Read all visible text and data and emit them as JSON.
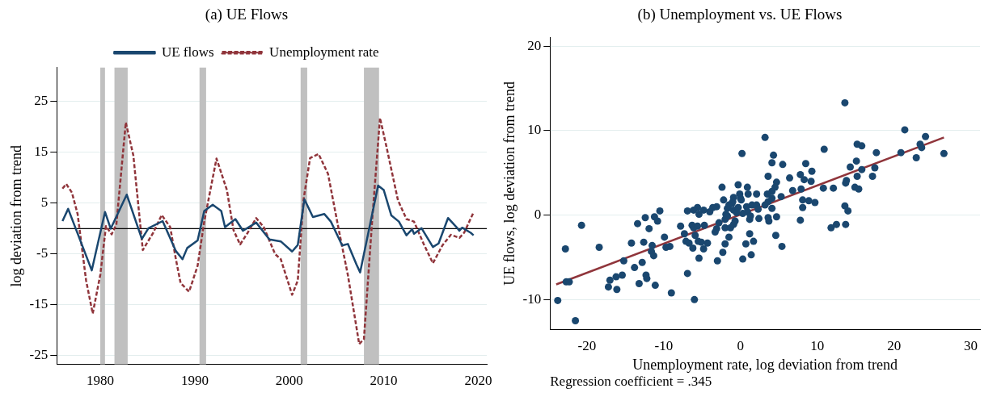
{
  "chart_data": [
    {
      "type": "line",
      "title": "(a) UE Flows",
      "ylabel": "log deviation from trend",
      "xlim": [
        1975.4,
        2020.9
      ],
      "xticks": [
        1980,
        1990,
        2000,
        2010,
        2020
      ],
      "ylim": [
        -26.7,
        31.7
      ],
      "yticks": [
        -25,
        -15,
        -5,
        5,
        15,
        25
      ],
      "grid": "y",
      "legend": "top",
      "marker": "none",
      "bands": [
        {
          "axis": "x",
          "from": 1980.0,
          "to": 1980.5,
          "color": "#c0c0c0"
        },
        {
          "axis": "x",
          "from": 1981.5,
          "to": 1982.9,
          "color": "#c0c0c0"
        },
        {
          "axis": "x",
          "from": 1990.5,
          "to": 1991.2,
          "color": "#c0c0c0"
        },
        {
          "axis": "x",
          "from": 2001.2,
          "to": 2001.9,
          "color": "#c0c0c0"
        },
        {
          "axis": "x",
          "from": 2007.9,
          "to": 2009.5,
          "color": "#c0c0c0"
        }
      ],
      "ref_lines": [
        {
          "axis": "y",
          "value": 0,
          "color": "#000000"
        }
      ],
      "series": [
        {
          "name": "UE flows",
          "color": "#1a476f",
          "line_style": "solid",
          "x": [
            1976.0,
            1976.6,
            1979.1,
            1980.5,
            1981.1,
            1982.8,
            1984.4,
            1985.1,
            1986.6,
            1988.0,
            1988.7,
            1989.2,
            1990.3,
            1991.0,
            1991.9,
            1992.8,
            1993.2,
            1994.3,
            1995.1,
            1996.5,
            1997.9,
            1999.1,
            2000.3,
            2000.9,
            2001.6,
            2002.5,
            2003.7,
            2004.4,
            2005.6,
            2006.2,
            2007.1,
            2007.5,
            2009.4,
            2010.0,
            2010.8,
            2011.6,
            2012.4,
            2013.0,
            2013.2,
            2014.0,
            2015.2,
            2015.8,
            2016.8,
            2017.7,
            2018.0,
            2018.3,
            2019.2,
            2019.5
          ],
          "values": [
            1.5,
            3.9,
            -8.2,
            3.3,
            0,
            6.7,
            -2.0,
            0.1,
            1.5,
            -4.4,
            -6.0,
            -3.8,
            -2.3,
            3.5,
            4.7,
            3.5,
            0.3,
            1.9,
            -0.4,
            1.2,
            -2.1,
            -2.5,
            -4.5,
            -3.2,
            5.8,
            2.3,
            2.9,
            1.4,
            -3.3,
            -3.0,
            -7.0,
            -8.6,
            8.5,
            7.6,
            2.6,
            1.4,
            -1.3,
            -0.1,
            -1.0,
            0.1,
            -3.6,
            -2.9,
            2.1,
            0.3,
            -0.4,
            0.2,
            -0.8,
            -1.3
          ]
        },
        {
          "name": "Unemployment rate",
          "color": "#90353b",
          "line_style": "dashed",
          "x": [
            1976.0,
            1976.4,
            1977.0,
            1977.6,
            1978.5,
            1979.2,
            1980.0,
            1980.6,
            1981.2,
            1981.7,
            1982.7,
            1983.5,
            1984.5,
            1985.6,
            1986.5,
            1987.4,
            1988.0,
            1988.5,
            1989.4,
            1990.3,
            1991.0,
            1992.3,
            1993.4,
            1994.1,
            1994.8,
            1995.6,
            1996.5,
            1997.3,
            1998.5,
            1999.1,
            2000.3,
            2000.9,
            2001.5,
            2002.2,
            2003.1,
            2004.1,
            2005.3,
            2006.2,
            2007.4,
            2007.9,
            2008.8,
            2009.6,
            2010.3,
            2011.5,
            2012.4,
            2013.2,
            2014.2,
            2015.2,
            2016.2,
            2017.1,
            2018.0,
            2018.5,
            2019.5
          ],
          "values": [
            7.9,
            8.8,
            7.1,
            2.9,
            -10.2,
            -16.7,
            -9.1,
            0.5,
            -1.1,
            0.8,
            20.9,
            14.4,
            -4.2,
            -0.8,
            2.7,
            0.3,
            -6.0,
            -10.7,
            -12.4,
            -7.3,
            1.4,
            13.8,
            7.6,
            -0.3,
            -3.1,
            -0.8,
            2.1,
            0.3,
            -5.0,
            -6.0,
            -13.0,
            -10.2,
            5.6,
            13.9,
            14.7,
            10.8,
            -0.8,
            -9.1,
            -22.7,
            -21.7,
            2.4,
            21.8,
            16.0,
            5.6,
            1.9,
            1.4,
            -2.9,
            -6.8,
            -3.3,
            -1.2,
            -1.8,
            -0.8,
            3.2
          ]
        }
      ]
    },
    {
      "type": "scatter",
      "title": "(b) Unemployment vs. UE Flows",
      "xlabel": "Unemployment rate, log deviation from trend",
      "ylabel": "UE flows, log deviation from trend",
      "annotations": [
        "Regression coefficient = .345"
      ],
      "xlim": [
        -24.8,
        31.2
      ],
      "xticks": [
        -20,
        -10,
        0,
        10,
        20,
        30
      ],
      "ylim": [
        -13.5,
        21
      ],
      "yticks": [
        -10,
        0,
        10,
        20
      ],
      "grid": "y",
      "legend": false,
      "marker": "circle",
      "series": [
        {
          "color": "#1a476f",
          "x": [
            13.6,
            3.2,
            0.2,
            4.3,
            4.1,
            5.5,
            3.6,
            6.4,
            4.7,
            4.5,
            6.8,
            5.3,
            4.1,
            3.5,
            3.6,
            4.1,
            7.8,
            8.3,
            8.5,
            9.3,
            9.2,
            7.9,
            8.1,
            8.9,
            9.7,
            8.1,
            10.9,
            10.8,
            12.1,
            15.2,
            15.8,
            15.1,
            14.3,
            15.8,
            17.7,
            17.5,
            17.2,
            15.2,
            13.8,
            13.7,
            14.9,
            15.4,
            13.6,
            14.0,
            20.9,
            21.4,
            22.9,
            23.4,
            23.6,
            24.1,
            26.5,
            -0.3,
            0.9,
            -2.4,
            -2.2,
            -0.9,
            -1.0,
            -0.1,
            0.0,
            -1.1,
            1.0,
            2.1,
            0.1,
            1.5,
            2.1,
            0.8,
            0.9,
            2.3,
            -1.5,
            -1.7,
            -0.9,
            -1.9,
            0.3,
            -3.1,
            -3.6,
            -4.0,
            -4.8,
            -5.6,
            -5.4,
            -6.1,
            -6.9,
            -10.5,
            3.2,
            4.1,
            -23.8,
            -21.5,
            -20.7,
            -22.8,
            -22.7,
            -22.3,
            -18.4,
            -17.2,
            -17.0,
            -16.1,
            -16.2,
            -15.4,
            -15.2,
            -14.2,
            -13.8,
            -13.2,
            -12.8,
            -13.4,
            -12.6,
            -12.3,
            -12.2,
            -12.4,
            -11.9,
            -11.5,
            -11.6,
            -11.3,
            -11.1,
            -11.2,
            -10.8,
            -9.9,
            -9.7,
            -9.2,
            -9.0,
            -7.8,
            -7.3,
            -7.1,
            -6.9,
            -6.7,
            -6.3,
            -6.1,
            -5.9,
            -6.2,
            -6.0,
            -5.6,
            -5.5,
            -5.4,
            -5.1,
            -4.8,
            -4.7,
            -4.3,
            -3.3,
            -3.1,
            -3.0,
            -2.8,
            -2.3,
            -2.0,
            -2.0,
            -1.5,
            -1.3,
            -0.9,
            -0.7,
            0.7,
            0.3,
            1.2,
            1.4,
            1.7,
            1.2,
            1.3,
            2.4,
            3.6,
            3.7,
            4.6,
            4.7,
            5.4,
            7.8,
            11.8,
            12.5,
            13.7,
            -2.0,
            -1.7,
            -0.5,
            -0.3
          ],
          "values": [
            13.3,
            9.2,
            7.3,
            7.1,
            6.2,
            6.0,
            4.6,
            4.4,
            3.9,
            3.3,
            2.9,
            2.2,
            2.8,
            2.5,
            1.6,
            2.0,
            4.8,
            4.2,
            6.1,
            5.2,
            4.0,
            3.1,
            1.8,
            1.7,
            1.5,
            0.9,
            7.8,
            3.2,
            3.2,
            8.4,
            8.2,
            6.4,
            5.7,
            5.4,
            7.4,
            5.6,
            4.6,
            4.6,
            4.1,
            3.8,
            3.3,
            3.1,
            1.1,
            0.5,
            7.4,
            10.1,
            6.8,
            8.4,
            8.0,
            9.3,
            7.3,
            3.6,
            3.3,
            3.3,
            1.8,
            2.1,
            1.6,
            2.5,
            2.0,
            1.4,
            2.5,
            2.5,
            1.8,
            1.2,
            1.2,
            1.0,
            0.4,
            0.7,
            1.2,
            0.8,
            0.6,
            0.1,
            0.2,
            1.0,
            0.9,
            0.4,
            0.6,
            0.9,
            0.1,
            0.6,
            0.5,
            0.5,
            1.2,
            0.8,
            -10.1,
            -12.5,
            -1.2,
            -4.0,
            -7.9,
            -7.9,
            -3.8,
            -8.5,
            -7.7,
            -8.8,
            -7.3,
            -7.1,
            -5.4,
            -3.3,
            -6.2,
            -8.1,
            -5.6,
            -1.0,
            -3.2,
            -7.1,
            -7.5,
            -0.3,
            -1.6,
            -3.6,
            -4.3,
            -4.8,
            -8.3,
            -0.2,
            -0.7,
            -2.6,
            -3.8,
            -3.7,
            -9.2,
            -1.3,
            -2.2,
            -3.1,
            -6.9,
            -3.3,
            -1.2,
            -1.5,
            -2.4,
            -3.9,
            -10.0,
            -1.3,
            -3.1,
            -5.1,
            -3.2,
            -4.0,
            -1.2,
            -3.3,
            -2.0,
            -1.6,
            -5.4,
            -0.9,
            -4.4,
            -3.4,
            -1.5,
            -2.6,
            -1.5,
            -1.1,
            -0.7,
            -3.4,
            -5.2,
            -2.2,
            -4.7,
            -3.1,
            -0.5,
            -0.1,
            -0.4,
            -0.3,
            -0.7,
            -2.4,
            -0.2,
            -3.7,
            -0.6,
            -1.5,
            -1.1,
            -1.1,
            -0.5,
            -0.1,
            0.3,
            0.9
          ]
        },
        {
          "type": "line",
          "color": "#90353b",
          "marker": "none",
          "line_style": "solid",
          "x": [
            -24,
            26.5
          ],
          "values": [
            -8.2,
            9.2
          ]
        }
      ]
    }
  ]
}
